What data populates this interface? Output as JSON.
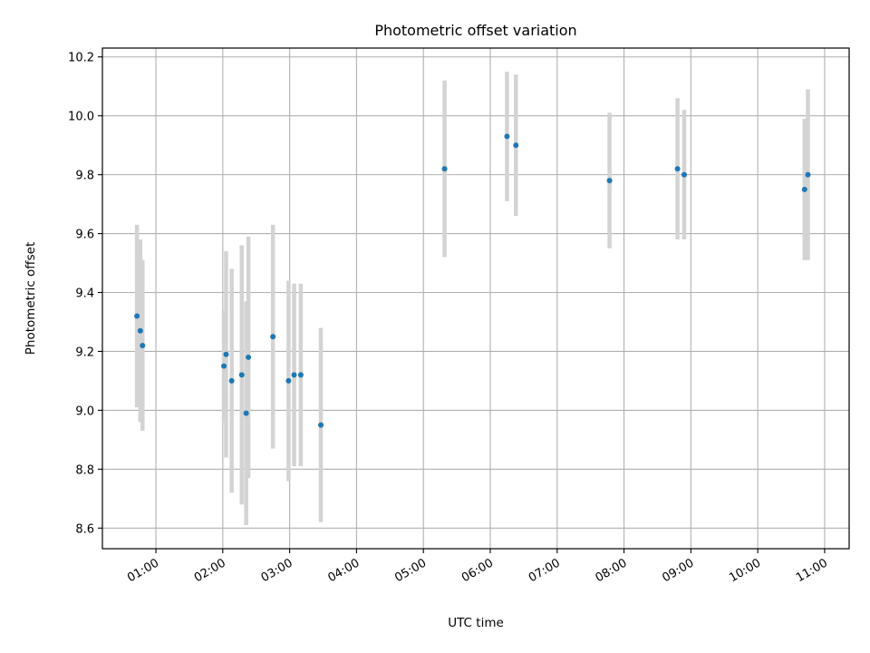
{
  "chart_data": {
    "type": "scatter",
    "title": "Photometric offset variation",
    "xlabel": "UTC time",
    "ylabel": "Photometric offset",
    "x_tick_labels": [
      "01:00",
      "02:00",
      "03:00",
      "04:00",
      "05:00",
      "06:00",
      "07:00",
      "08:00",
      "09:00",
      "10:00",
      "11:00"
    ],
    "y_tick_labels": [
      "8.6",
      "8.8",
      "9.0",
      "9.2",
      "9.4",
      "9.6",
      "9.8",
      "10.0",
      "10.2"
    ],
    "x_range": [
      "00:12",
      "11:22"
    ],
    "y_range": [
      8.53,
      10.23
    ],
    "grid": true,
    "points": [
      {
        "time": "00:43",
        "y": 9.32,
        "err": 0.31
      },
      {
        "time": "00:46",
        "y": 9.27,
        "err": 0.31
      },
      {
        "time": "00:48",
        "y": 9.22,
        "err": 0.29
      },
      {
        "time": "02:01",
        "y": 9.15,
        "err": 0.19
      },
      {
        "time": "02:03",
        "y": 9.19,
        "err": 0.35
      },
      {
        "time": "02:08",
        "y": 9.1,
        "err": 0.38
      },
      {
        "time": "02:17",
        "y": 9.12,
        "err": 0.44
      },
      {
        "time": "02:21",
        "y": 8.99,
        "err": 0.38
      },
      {
        "time": "02:23",
        "y": 9.18,
        "err": 0.41
      },
      {
        "time": "02:45",
        "y": 9.25,
        "err": 0.38
      },
      {
        "time": "02:59",
        "y": 9.1,
        "err": 0.34
      },
      {
        "time": "03:04",
        "y": 9.12,
        "err": 0.31
      },
      {
        "time": "03:10",
        "y": 9.12,
        "err": 0.31
      },
      {
        "time": "03:28",
        "y": 8.95,
        "err": 0.33
      },
      {
        "time": "05:19",
        "y": 9.82,
        "err": 0.3
      },
      {
        "time": "06:15",
        "y": 9.93,
        "err": 0.22
      },
      {
        "time": "06:23",
        "y": 9.9,
        "err": 0.24
      },
      {
        "time": "07:47",
        "y": 9.78,
        "err": 0.23
      },
      {
        "time": "08:48",
        "y": 9.82,
        "err": 0.24
      },
      {
        "time": "08:54",
        "y": 9.8,
        "err": 0.22
      },
      {
        "time": "10:42",
        "y": 9.75,
        "err": 0.24
      },
      {
        "time": "10:45",
        "y": 9.8,
        "err": 0.29
      }
    ],
    "colors": {
      "marker": "#1f77b4",
      "errorbar": "#d3d3d3",
      "grid": "#b0b0b0",
      "axis": "#000000"
    }
  }
}
